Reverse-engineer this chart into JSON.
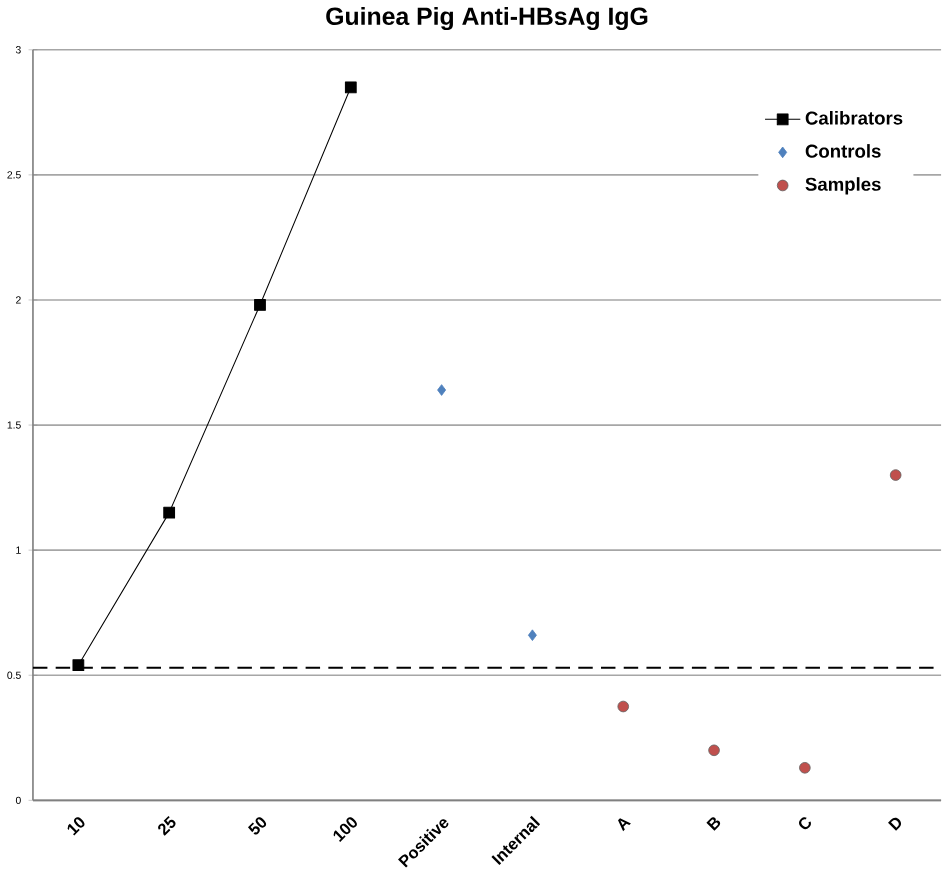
{
  "chart_data": {
    "type": "scatter",
    "title": "Guinea Pig Anti-HBsAg IgG",
    "categories": [
      "10",
      "25",
      "50",
      "100",
      "Positive",
      "Internal",
      "A",
      "B",
      "C",
      "D"
    ],
    "series": [
      {
        "name": "Calibrators",
        "type": "line",
        "marker": "square",
        "color": "#000000",
        "values": [
          0.54,
          1.15,
          1.98,
          2.85,
          null,
          null,
          null,
          null,
          null,
          null
        ]
      },
      {
        "name": "Controls",
        "marker": "diamond",
        "color": "#4f81bd",
        "values": [
          null,
          null,
          null,
          null,
          1.64,
          0.66,
          null,
          null,
          null,
          null
        ]
      },
      {
        "name": "Samples",
        "marker": "circle",
        "color": "#c0504d",
        "values": [
          null,
          null,
          null,
          null,
          null,
          null,
          0.375,
          0.2,
          0.13,
          1.3
        ]
      }
    ],
    "ylim": [
      0,
      3
    ],
    "yticks": [
      0,
      0.5,
      1,
      1.5,
      2,
      2.5,
      3
    ],
    "ref_lines": [
      {
        "axis": "y",
        "value": 0.53,
        "line_style": "dashed",
        "color": "#000000"
      }
    ],
    "grid": "y",
    "legend": "top right"
  }
}
